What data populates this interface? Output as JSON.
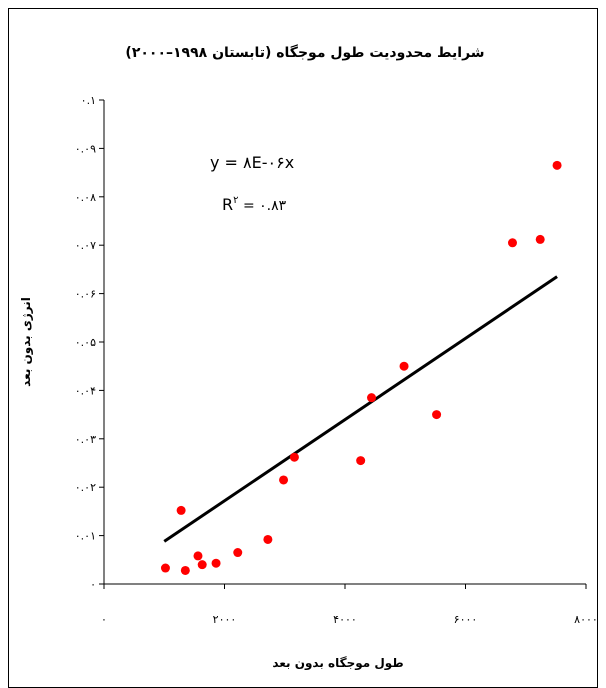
{
  "chart_data": {
    "type": "scatter",
    "title": "شرایط محدودیت طول موجگاه (تابستان ۱۹۹۸–۲۰۰۰)",
    "xlabel": "طول موجگاه بدون بعد",
    "ylabel": "انرژی بدون بعد",
    "xlim": [
      0,
      8000
    ],
    "ylim": [
      0,
      0.1
    ],
    "x_ticks": [
      0,
      2000,
      4000,
      6000,
      8000
    ],
    "x_tick_labels": [
      "۰",
      "۲۰۰۰",
      "۴۰۰۰",
      "۶۰۰۰",
      "۸۰۰۰"
    ],
    "y_ticks": [
      0,
      0.01,
      0.02,
      0.03,
      0.04,
      0.05,
      0.06,
      0.07,
      0.08,
      0.09,
      0.1
    ],
    "y_tick_labels": [
      "۰",
      "۰.۰۱",
      "۰.۰۲",
      "۰.۰۳",
      "۰.۰۴",
      "۰.۰۵",
      "۰.۰۶",
      "۰.۰۷",
      "۰.۰۸",
      "۰.۰۹",
      "۰.۱"
    ],
    "grid": false,
    "marker_color": "#ff0000",
    "line_color": "#000000",
    "points": [
      {
        "x": 1020,
        "y": 0.0033
      },
      {
        "x": 1280,
        "y": 0.0152
      },
      {
        "x": 1350,
        "y": 0.0028
      },
      {
        "x": 1560,
        "y": 0.0058
      },
      {
        "x": 1630,
        "y": 0.004
      },
      {
        "x": 1860,
        "y": 0.0043
      },
      {
        "x": 2220,
        "y": 0.0065
      },
      {
        "x": 2720,
        "y": 0.0092
      },
      {
        "x": 2980,
        "y": 0.0215
      },
      {
        "x": 3160,
        "y": 0.0262
      },
      {
        "x": 4260,
        "y": 0.0255
      },
      {
        "x": 4440,
        "y": 0.0385
      },
      {
        "x": 4980,
        "y": 0.045
      },
      {
        "x": 5520,
        "y": 0.035
      },
      {
        "x": 6780,
        "y": 0.0705
      },
      {
        "x": 7240,
        "y": 0.0712
      },
      {
        "x": 7520,
        "y": 0.0865
      }
    ],
    "trendline": {
      "x": [
        1000,
        7520
      ],
      "y": [
        0.0088,
        0.0635
      ]
    },
    "annotation": {
      "equation": "y = ۸E-۰۶x",
      "r2_prefix": "R",
      "r2_sup": "۲",
      "r2_suffix": " = ۰.۸۳"
    }
  }
}
